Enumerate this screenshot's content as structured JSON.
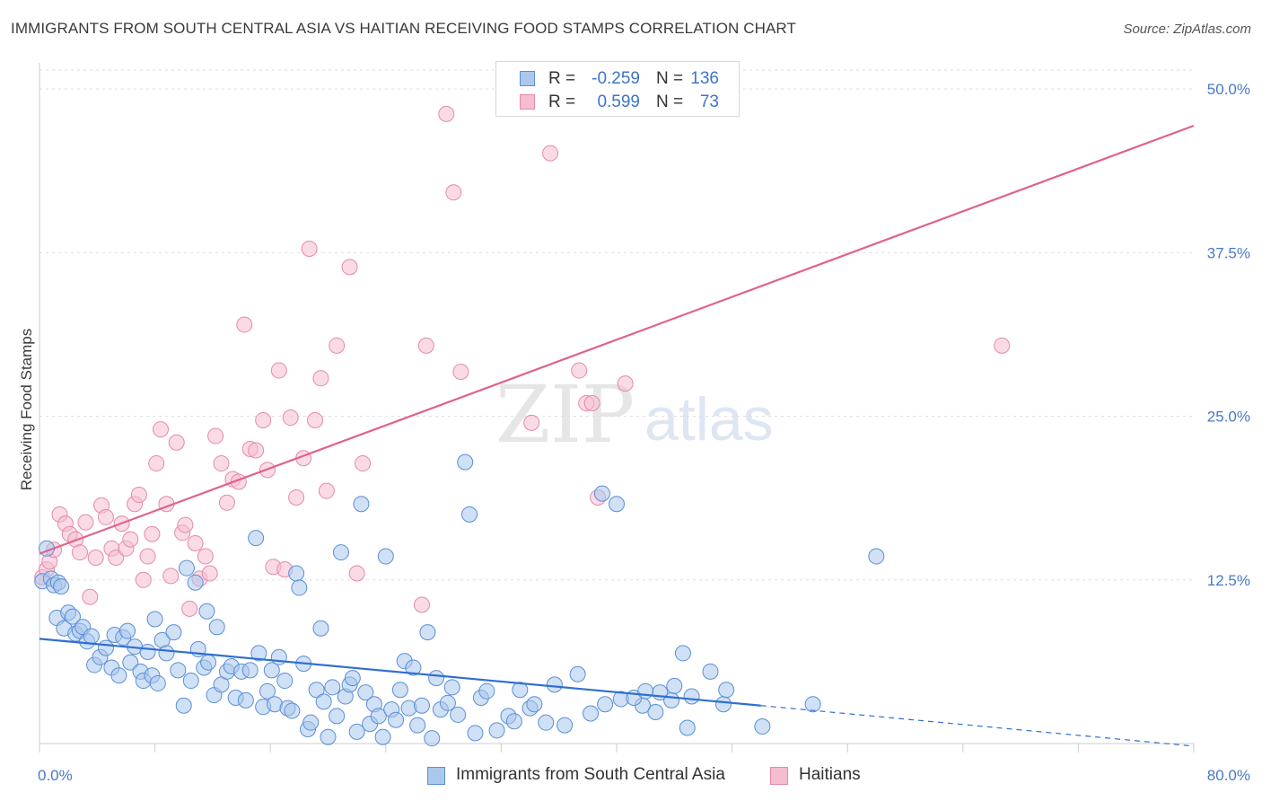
{
  "header": {
    "title": "IMMIGRANTS FROM SOUTH CENTRAL ASIA VS HAITIAN RECEIVING FOOD STAMPS CORRELATION CHART",
    "source": "Source: ZipAtlas.com"
  },
  "watermark": {
    "part1": "ZIP",
    "part2": "atlas"
  },
  "colors": {
    "blue_fill": "#aac7ec",
    "blue_stroke": "#5b8fd6",
    "blue_line": "#2f6fd0",
    "pink_fill": "#f6bdd0",
    "pink_stroke": "#e48aa9",
    "pink_line": "#e0628e",
    "tick_text": "#4a78c6",
    "grid": "#dddddd"
  },
  "stats": {
    "rows": [
      {
        "r_label": "R =",
        "r_value": "-0.259",
        "n_label": "N =",
        "n_value": "136"
      },
      {
        "r_label": "R =",
        "r_value": "0.599",
        "n_label": "N =",
        "n_value": "73"
      }
    ]
  },
  "legend": {
    "items": [
      {
        "label": "Immigrants from South Central Asia"
      },
      {
        "label": "Haitians"
      }
    ]
  },
  "chart_data": {
    "type": "scatter",
    "title": "IMMIGRANTS FROM SOUTH CENTRAL ASIA VS HAITIAN RECEIVING FOOD STAMPS CORRELATION CHART",
    "xlabel": "",
    "ylabel": "Receiving Food Stamps",
    "xlim": [
      0,
      80
    ],
    "ylim": [
      0,
      52
    ],
    "grid": true,
    "x_ticks": [
      0,
      8,
      16,
      24,
      32,
      40,
      48,
      56,
      64,
      72,
      80
    ],
    "x_tick_labels": [
      {
        "value": 0,
        "label": "0.0%"
      },
      {
        "value": 80,
        "label": "80.0%"
      }
    ],
    "y_ticks": [
      {
        "value": 12.5,
        "label": "12.5%"
      },
      {
        "value": 25.0,
        "label": "25.0%"
      },
      {
        "value": 37.5,
        "label": "37.5%"
      },
      {
        "value": 50.0,
        "label": "50.0%"
      }
    ],
    "legend_position": "bottom",
    "series": [
      {
        "name": "Immigrants from South Central Asia",
        "color": "#aac7ec",
        "r": -0.259,
        "n": 136,
        "trend": {
          "x0": 0,
          "y0": 8.0,
          "x1": 50,
          "y1": 2.9,
          "dashed_to_x": 80,
          "dashed_to_y": -0.2
        },
        "points": [
          [
            0.2,
            12.4
          ],
          [
            0.5,
            14.9
          ],
          [
            0.8,
            12.6
          ],
          [
            1.0,
            12.1
          ],
          [
            1.3,
            12.3
          ],
          [
            1.5,
            12.0
          ],
          [
            1.2,
            9.6
          ],
          [
            1.7,
            8.8
          ],
          [
            2.0,
            10.0
          ],
          [
            2.3,
            9.7
          ],
          [
            2.5,
            8.4
          ],
          [
            2.8,
            8.6
          ],
          [
            3.0,
            8.9
          ],
          [
            3.3,
            7.8
          ],
          [
            3.8,
            6.0
          ],
          [
            3.6,
            8.2
          ],
          [
            4.2,
            6.6
          ],
          [
            4.6,
            7.3
          ],
          [
            5.0,
            5.8
          ],
          [
            5.2,
            8.3
          ],
          [
            5.5,
            5.2
          ],
          [
            5.8,
            8.1
          ],
          [
            6.1,
            8.6
          ],
          [
            6.3,
            6.2
          ],
          [
            6.6,
            7.4
          ],
          [
            7.0,
            5.5
          ],
          [
            7.2,
            4.8
          ],
          [
            7.5,
            7.0
          ],
          [
            7.8,
            5.2
          ],
          [
            8.0,
            9.5
          ],
          [
            8.2,
            4.6
          ],
          [
            8.5,
            7.9
          ],
          [
            8.8,
            6.9
          ],
          [
            9.3,
            8.5
          ],
          [
            9.6,
            5.6
          ],
          [
            10.0,
            2.9
          ],
          [
            10.2,
            13.4
          ],
          [
            10.5,
            4.8
          ],
          [
            10.8,
            12.3
          ],
          [
            11.0,
            7.2
          ],
          [
            11.4,
            5.8
          ],
          [
            11.7,
            6.2
          ],
          [
            12.1,
            3.7
          ],
          [
            12.3,
            8.9
          ],
          [
            12.6,
            4.5
          ],
          [
            13.0,
            5.5
          ],
          [
            13.3,
            5.9
          ],
          [
            13.6,
            3.5
          ],
          [
            14.0,
            5.5
          ],
          [
            14.3,
            3.3
          ],
          [
            14.6,
            5.6
          ],
          [
            15.0,
            15.7
          ],
          [
            15.2,
            6.9
          ],
          [
            15.5,
            2.8
          ],
          [
            15.8,
            4.0
          ],
          [
            16.1,
            5.6
          ],
          [
            16.3,
            3.0
          ],
          [
            16.6,
            6.6
          ],
          [
            17.0,
            4.8
          ],
          [
            17.2,
            2.7
          ],
          [
            17.5,
            2.5
          ],
          [
            17.8,
            13.0
          ],
          [
            18.0,
            11.9
          ],
          [
            18.3,
            6.1
          ],
          [
            18.6,
            1.1
          ],
          [
            18.8,
            1.6
          ],
          [
            19.2,
            4.1
          ],
          [
            19.5,
            8.8
          ],
          [
            19.7,
            3.2
          ],
          [
            20.0,
            0.5
          ],
          [
            20.3,
            4.3
          ],
          [
            20.6,
            2.1
          ],
          [
            20.9,
            14.6
          ],
          [
            21.2,
            3.6
          ],
          [
            21.5,
            4.5
          ],
          [
            21.7,
            5.0
          ],
          [
            22.0,
            0.9
          ],
          [
            22.3,
            18.3
          ],
          [
            22.6,
            3.9
          ],
          [
            22.9,
            1.5
          ],
          [
            23.2,
            3.0
          ],
          [
            23.5,
            2.1
          ],
          [
            23.8,
            0.5
          ],
          [
            24.0,
            14.3
          ],
          [
            24.4,
            2.6
          ],
          [
            24.7,
            1.8
          ],
          [
            25.0,
            4.1
          ],
          [
            25.3,
            6.3
          ],
          [
            25.6,
            2.7
          ],
          [
            25.9,
            5.8
          ],
          [
            26.2,
            1.4
          ],
          [
            26.5,
            2.9
          ],
          [
            26.9,
            8.5
          ],
          [
            27.2,
            0.4
          ],
          [
            27.5,
            5.0
          ],
          [
            27.8,
            2.6
          ],
          [
            28.3,
            3.1
          ],
          [
            28.6,
            4.3
          ],
          [
            29.0,
            2.2
          ],
          [
            29.5,
            21.5
          ],
          [
            29.8,
            17.5
          ],
          [
            30.2,
            0.8
          ],
          [
            30.6,
            3.5
          ],
          [
            31.0,
            4.0
          ],
          [
            31.7,
            1.0
          ],
          [
            32.5,
            2.1
          ],
          [
            32.9,
            1.7
          ],
          [
            33.3,
            4.1
          ],
          [
            34.0,
            2.7
          ],
          [
            34.3,
            3.0
          ],
          [
            35.1,
            1.6
          ],
          [
            35.7,
            4.5
          ],
          [
            36.4,
            1.4
          ],
          [
            37.3,
            5.3
          ],
          [
            39.0,
            19.1
          ],
          [
            38.2,
            2.3
          ],
          [
            40.0,
            18.3
          ],
          [
            39.2,
            3.0
          ],
          [
            40.3,
            3.4
          ],
          [
            41.8,
            2.9
          ],
          [
            42.7,
            2.4
          ],
          [
            43.8,
            3.3
          ],
          [
            44.6,
            6.9
          ],
          [
            45.2,
            3.6
          ],
          [
            43.0,
            3.9
          ],
          [
            44.0,
            4.4
          ],
          [
            41.2,
            3.5
          ],
          [
            44.9,
            1.2
          ],
          [
            42.0,
            4.0
          ],
          [
            46.5,
            5.5
          ],
          [
            47.4,
            3.0
          ],
          [
            50.1,
            1.3
          ],
          [
            53.6,
            3.0
          ],
          [
            58.0,
            14.3
          ],
          [
            47.6,
            4.1
          ],
          [
            11.6,
            10.1
          ]
        ]
      },
      {
        "name": "Haitians",
        "color": "#f6bdd0",
        "r": 0.599,
        "n": 73,
        "trend": {
          "x0": 0,
          "y0": 14.5,
          "x1": 80,
          "y1": 47.2
        },
        "points": [
          [
            0.2,
            12.7
          ],
          [
            0.5,
            13.3
          ],
          [
            0.7,
            13.9
          ],
          [
            1.0,
            14.8
          ],
          [
            1.4,
            17.5
          ],
          [
            1.8,
            16.8
          ],
          [
            2.1,
            16.0
          ],
          [
            2.5,
            15.6
          ],
          [
            2.8,
            14.6
          ],
          [
            3.2,
            16.9
          ],
          [
            3.5,
            11.2
          ],
          [
            3.9,
            14.2
          ],
          [
            4.3,
            18.2
          ],
          [
            4.6,
            17.3
          ],
          [
            5.0,
            14.9
          ],
          [
            5.3,
            14.2
          ],
          [
            5.7,
            16.8
          ],
          [
            6.0,
            14.9
          ],
          [
            6.3,
            15.6
          ],
          [
            6.6,
            18.3
          ],
          [
            6.9,
            19.0
          ],
          [
            7.2,
            12.5
          ],
          [
            7.5,
            14.3
          ],
          [
            7.8,
            16.0
          ],
          [
            8.1,
            21.4
          ],
          [
            8.4,
            24.0
          ],
          [
            8.8,
            18.3
          ],
          [
            9.1,
            12.8
          ],
          [
            9.5,
            23.0
          ],
          [
            9.9,
            16.1
          ],
          [
            10.1,
            16.7
          ],
          [
            10.4,
            10.3
          ],
          [
            10.8,
            15.3
          ],
          [
            11.1,
            12.6
          ],
          [
            11.5,
            14.3
          ],
          [
            11.8,
            13.0
          ],
          [
            12.2,
            23.5
          ],
          [
            12.6,
            21.4
          ],
          [
            13.0,
            18.4
          ],
          [
            13.4,
            20.2
          ],
          [
            13.8,
            20.0
          ],
          [
            14.2,
            32.0
          ],
          [
            14.6,
            22.5
          ],
          [
            15.0,
            22.4
          ],
          [
            15.5,
            24.7
          ],
          [
            15.8,
            20.9
          ],
          [
            16.2,
            13.5
          ],
          [
            16.6,
            28.5
          ],
          [
            17.0,
            13.3
          ],
          [
            17.4,
            24.9
          ],
          [
            17.8,
            18.8
          ],
          [
            18.3,
            21.8
          ],
          [
            18.7,
            37.8
          ],
          [
            19.1,
            24.7
          ],
          [
            19.5,
            27.9
          ],
          [
            19.9,
            19.3
          ],
          [
            20.6,
            30.4
          ],
          [
            21.5,
            36.4
          ],
          [
            22.0,
            13.0
          ],
          [
            22.4,
            21.4
          ],
          [
            26.5,
            10.6
          ],
          [
            26.8,
            30.4
          ],
          [
            28.2,
            48.1
          ],
          [
            28.7,
            42.1
          ],
          [
            29.2,
            28.4
          ],
          [
            34.1,
            24.5
          ],
          [
            35.4,
            45.1
          ],
          [
            37.4,
            28.5
          ],
          [
            37.9,
            26.0
          ],
          [
            38.3,
            26.0
          ],
          [
            38.7,
            18.8
          ],
          [
            40.6,
            27.5
          ],
          [
            66.7,
            30.4
          ]
        ]
      }
    ]
  }
}
